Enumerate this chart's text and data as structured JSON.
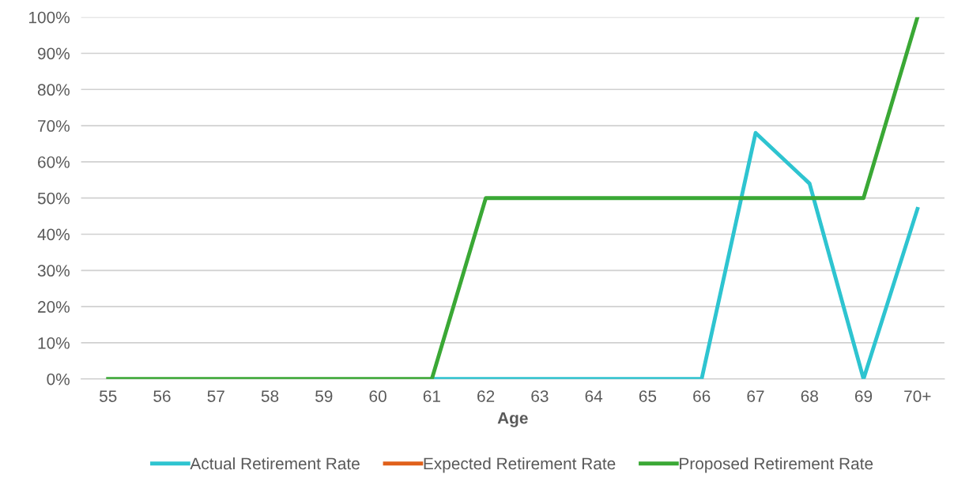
{
  "chart_data": {
    "type": "line",
    "xlabel": "Age",
    "categories": [
      "55",
      "56",
      "57",
      "58",
      "59",
      "60",
      "61",
      "62",
      "63",
      "64",
      "65",
      "66",
      "67",
      "68",
      "69",
      "70+"
    ],
    "ylim": [
      0,
      100
    ],
    "yticks": [
      {
        "value": 0,
        "label": "0%"
      },
      {
        "value": 10,
        "label": "10%"
      },
      {
        "value": 20,
        "label": "20%"
      },
      {
        "value": 30,
        "label": "30%"
      },
      {
        "value": 40,
        "label": "40%"
      },
      {
        "value": 50,
        "label": "50%"
      },
      {
        "value": 60,
        "label": "60%"
      },
      {
        "value": 70,
        "label": "70%"
      },
      {
        "value": 80,
        "label": "80%"
      },
      {
        "value": 90,
        "label": "90%"
      },
      {
        "value": 100,
        "label": "100%"
      }
    ],
    "grid": "y",
    "legend": "bottom",
    "marker": "none",
    "line_style": "solid",
    "series": [
      {
        "name": "Actual Retirement Rate",
        "color": "#2ec4d0",
        "values": [
          null,
          null,
          null,
          null,
          null,
          null,
          0,
          0,
          0,
          0,
          0,
          0,
          68,
          54,
          0,
          47
        ]
      },
      {
        "name": "Expected Retirement Rate",
        "color": "#e0601a",
        "values": [
          null,
          null,
          null,
          null,
          null,
          null,
          null,
          null,
          null,
          null,
          null,
          null,
          null,
          null,
          null,
          null
        ]
      },
      {
        "name": "Proposed Retirement Rate",
        "color": "#3aa835",
        "values": [
          0,
          0,
          0,
          0,
          0,
          0,
          0,
          50,
          50,
          50,
          50,
          50,
          50,
          50,
          50,
          100
        ]
      }
    ]
  }
}
